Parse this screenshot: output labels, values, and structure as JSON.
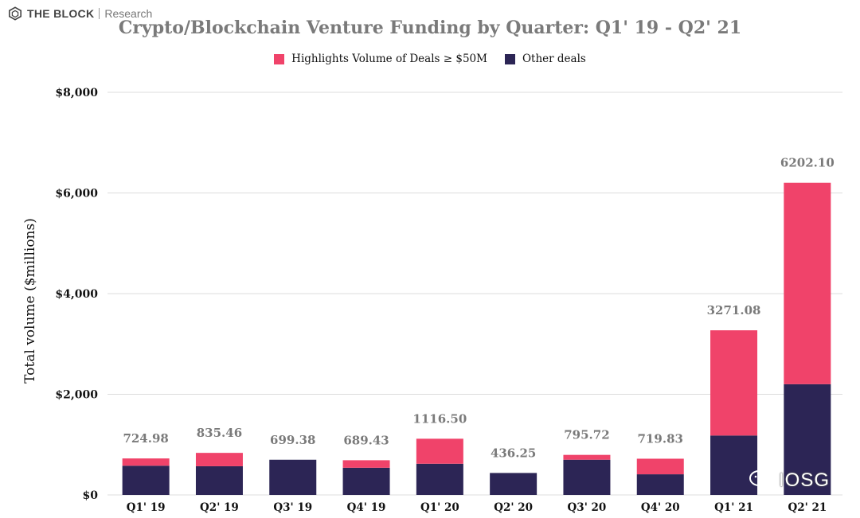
{
  "brand": {
    "name": "THE BLOCK",
    "sub": "Research",
    "icon": "cube-logo-icon"
  },
  "watermark": {
    "text": "IOSG",
    "icon": "wechat-icon"
  },
  "colors": {
    "highlight": "#f0436a",
    "other": "#2c2555",
    "grid": "#dcdcdc",
    "value_label": "#7a7a7a"
  },
  "chart_data": {
    "type": "bar",
    "stacked": true,
    "title": "Crypto/Blockchain Venture Funding by Quarter: Q1' 19 - Q2' 21",
    "ylabel": "Total volume ($millions)",
    "xlabel": "",
    "ylim": [
      0,
      8000
    ],
    "yticks": [
      "$0",
      "$2,000",
      "$4,000",
      "$6,000",
      "$8,000"
    ],
    "ytick_values": [
      0,
      2000,
      4000,
      6000,
      8000
    ],
    "grid": true,
    "legend_position": "top-center",
    "categories": [
      "Q1' 19",
      "Q2' 19",
      "Q3' 19",
      "Q4' 19",
      "Q1' 20",
      "Q2' 20",
      "Q3' 20",
      "Q4' 20",
      "Q1' 21",
      "Q2' 21"
    ],
    "totals": [
      "724.98",
      "835.46",
      "699.38",
      "689.43",
      "1116.50",
      "436.25",
      "795.72",
      "719.83",
      "3271.08",
      "6202.10"
    ],
    "series": [
      {
        "name": "Other deals",
        "values": [
          580,
          570,
          699.38,
          540,
          620,
          436.25,
          700,
          410,
          1180,
          2200
        ]
      },
      {
        "name": "Highlights Volume of Deals ≥ $50M",
        "values": [
          144.98,
          265.46,
          0,
          149.43,
          496.5,
          0,
          95.72,
          309.83,
          2091.08,
          4002.1
        ]
      }
    ]
  }
}
